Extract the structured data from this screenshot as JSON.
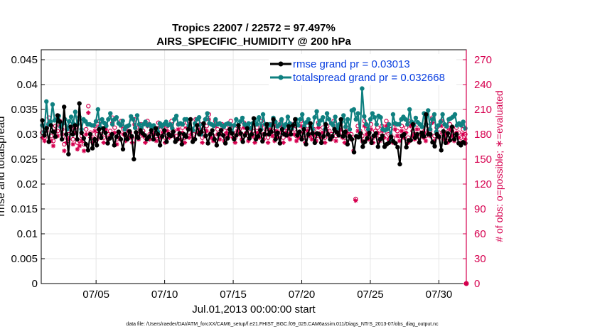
{
  "chart_data": {
    "type": "line",
    "title_line1": "Tropics 22007 / 22572 = 97.497%",
    "title_line2": "AIRS_SPECIFIC_HUMIDITY @ 200 hPa",
    "xlabel": "Jul.01,2013 00:00:00 start",
    "ylabel_left": "rmse and totalspread",
    "ylabel_right": "# of obs: o=possible; ∗=evaluated",
    "footer": "data file: /Users/raeder/DAI/ATM_forcXX/CAM6_setup/f.e21.FHIST_BGC.f09_025.CAM6assim.011/Diags_NTrS_2013-07/obs_diag_output.nc",
    "x_range_days": [
      1,
      32
    ],
    "x_ticks": [
      {
        "day": 5,
        "label": "07/05"
      },
      {
        "day": 10,
        "label": "07/10"
      },
      {
        "day": 15,
        "label": "07/15"
      },
      {
        "day": 20,
        "label": "07/20"
      },
      {
        "day": 25,
        "label": "07/25"
      },
      {
        "day": 30,
        "label": "07/30"
      }
    ],
    "ylim_left": [
      0,
      0.047
    ],
    "yticks_left": [
      "0",
      "0.005",
      "0.01",
      "0.015",
      "0.02",
      "0.025",
      "0.03",
      "0.035",
      "0.04",
      "0.045"
    ],
    "ylim_right": [
      0,
      282
    ],
    "yticks_right": [
      "0",
      "30",
      "60",
      "90",
      "120",
      "150",
      "180",
      "210",
      "240",
      "270"
    ],
    "grid": true,
    "legend_position": "top-right",
    "series": [
      {
        "name": "rmse grand pr = 0.03013",
        "color": "#000000",
        "marker": "circle",
        "axis": "left",
        "values": [
          0.0328,
          0.0298,
          0.0312,
          0.0285,
          0.0318,
          0.0305,
          0.0295,
          0.0338,
          0.0325,
          0.029,
          0.0355,
          0.03,
          0.026,
          0.0315,
          0.03,
          0.0318,
          0.029,
          0.0362,
          0.0303,
          0.0292,
          0.028,
          0.0268,
          0.03,
          0.0272,
          0.029,
          0.0278,
          0.031,
          0.0293,
          0.0312,
          0.0303,
          0.0282,
          0.0292,
          0.03,
          0.0278,
          0.0295,
          0.0305,
          0.029,
          0.027,
          0.03,
          0.029,
          0.0306,
          0.0296,
          0.025,
          0.0304,
          0.0293,
          0.0308,
          0.0302,
          0.0298,
          0.029,
          0.0295,
          0.0308,
          0.029,
          0.0312,
          0.03,
          0.0278,
          0.0296,
          0.0308,
          0.0285,
          0.03,
          0.0297,
          0.0305,
          0.0285,
          0.029,
          0.0302,
          0.028,
          0.03,
          0.0295,
          0.031,
          0.033,
          0.0285,
          0.029,
          0.0318,
          0.03,
          0.0305,
          0.0322,
          0.0297,
          0.0282,
          0.03,
          0.0308,
          0.029,
          0.0278,
          0.03,
          0.0308,
          0.0298,
          0.0282,
          0.0292,
          0.031,
          0.0302,
          0.029,
          0.0298,
          0.0318,
          0.0302,
          0.0285,
          0.0298,
          0.0312,
          0.0292,
          0.03,
          0.0332,
          0.029,
          0.0296,
          0.0308,
          0.0286,
          0.03,
          0.032,
          0.03,
          0.0305,
          0.033,
          0.029,
          0.0303,
          0.0282,
          0.031,
          0.03,
          0.0298,
          0.0316,
          0.03,
          0.0318,
          0.033,
          0.0298,
          0.0305,
          0.029,
          0.031,
          0.028,
          0.03,
          0.0322,
          0.0302,
          0.0283,
          0.0302,
          0.03,
          0.0283,
          0.0296,
          0.032,
          0.03,
          0.029,
          0.0296,
          0.031,
          0.0304,
          0.0298,
          0.033,
          0.0296,
          0.0305,
          0.028,
          0.0296,
          0.029,
          0.0264,
          0.0296,
          0.0294,
          0.0302,
          0.0275,
          0.0285,
          0.0292,
          0.0303,
          0.0283,
          0.0297,
          0.0302,
          0.0275,
          0.029,
          0.0297,
          0.0275,
          0.028,
          0.0283,
          0.0295,
          0.0286,
          0.0282,
          0.0274,
          0.024,
          0.0297,
          0.03,
          0.0274,
          0.0288,
          0.0288,
          0.032,
          0.0293,
          0.03,
          0.0284,
          0.0303,
          0.0296,
          0.034,
          0.03,
          0.03,
          0.0284,
          0.0276,
          0.03,
          0.0295,
          0.0268,
          0.0306,
          0.0283,
          0.0302,
          0.0288,
          0.0315,
          0.029,
          0.03,
          0.0282,
          0.0278,
          0.0284,
          0.0282
        ]
      },
      {
        "name": "totalspread grand pr = 0.032668",
        "color": "#0f8080",
        "marker": "circle",
        "axis": "left",
        "values": [
          0.0318,
          0.0305,
          0.0366,
          0.032,
          0.0325,
          0.036,
          0.0328,
          0.033,
          0.0337,
          0.0315,
          0.0322,
          0.033,
          0.031,
          0.0326,
          0.0335,
          0.0322,
          0.0345,
          0.032,
          0.0335,
          0.031,
          0.033,
          0.0326,
          0.032,
          0.032,
          0.0318,
          0.0318,
          0.0326,
          0.035,
          0.0314,
          0.033,
          0.0323,
          0.0317,
          0.033,
          0.0342,
          0.032,
          0.033,
          0.0334,
          0.0322,
          0.0318,
          0.0327,
          0.031,
          0.0316,
          0.0318,
          0.0336,
          0.033,
          0.0313,
          0.0338,
          0.032,
          0.0313,
          0.032,
          0.0325,
          0.0318,
          0.032,
          0.0314,
          0.0318,
          0.0312,
          0.0305,
          0.0322,
          0.0316,
          0.032,
          0.0325,
          0.0318,
          0.032,
          0.0312,
          0.033,
          0.0337,
          0.032,
          0.0322,
          0.032,
          0.033,
          0.033,
          0.0317,
          0.0312,
          0.0308,
          0.0322,
          0.033,
          0.0334,
          0.03,
          0.032,
          0.033,
          0.0342,
          0.0322,
          0.032,
          0.0317,
          0.033,
          0.032,
          0.0322,
          0.0318,
          0.0315,
          0.032,
          0.0322,
          0.032,
          0.0304,
          0.0318,
          0.033,
          0.0318,
          0.0326,
          0.0333,
          0.032,
          0.0316,
          0.0322,
          0.0312,
          0.0322,
          0.033,
          0.032,
          0.0334,
          0.031,
          0.034,
          0.032,
          0.0316,
          0.032,
          0.0318,
          0.0333,
          0.0325,
          0.0316,
          0.032,
          0.033,
          0.0314,
          0.032,
          0.0335,
          0.0322,
          0.0312,
          0.032,
          0.033,
          0.0318,
          0.033,
          0.034,
          0.0316,
          0.0324,
          0.033,
          0.0316,
          0.031,
          0.0334,
          0.0346,
          0.032,
          0.0328,
          0.0334,
          0.031,
          0.0342,
          0.033,
          0.0322,
          0.0318,
          0.0335,
          0.0312,
          0.032,
          0.0325,
          0.0338,
          0.0315,
          0.033,
          0.031,
          0.0348,
          0.035,
          0.033,
          0.0342,
          0.03,
          0.0392,
          0.0336,
          0.032,
          0.031,
          0.033,
          0.0342,
          0.0334,
          0.032,
          0.0337,
          0.0334,
          0.031,
          0.0308,
          0.031,
          0.032,
          0.029,
          0.034,
          0.0322,
          0.032,
          0.032,
          0.033,
          0.0335,
          0.033,
          0.032,
          0.035,
          0.0325,
          0.0318,
          0.0333,
          0.0324,
          0.032,
          0.0315,
          0.0342,
          0.032,
          0.0348,
          0.031,
          0.033,
          0.034,
          0.0305,
          0.0318,
          0.0325,
          0.034,
          0.032,
          0.0316,
          0.033,
          0.0332,
          0.0335,
          0.034,
          0.0318,
          0.0322,
          0.0318,
          0.0325,
          0.0312
        ]
      }
    ],
    "obs_possible": {
      "name": "# of obs possible",
      "marker": "o",
      "color": "#d6004f",
      "axis": "right",
      "values": [
        182,
        176,
        188,
        200,
        178,
        172,
        190,
        184,
        196,
        186,
        168,
        176,
        180,
        192,
        174,
        188,
        170,
        172,
        178,
        168,
        186,
        214,
        182,
        176,
        190,
        180,
        196,
        184,
        176,
        192,
        180,
        184,
        200,
        188,
        174,
        182,
        196,
        186,
        178,
        190,
        182,
        176,
        198,
        188,
        180,
        192,
        184,
        176,
        196,
        180,
        190,
        186,
        178,
        194,
        182,
        188,
        176,
        190,
        182,
        196,
        184,
        178,
        192,
        180,
        188,
        176,
        194,
        182,
        186,
        180,
        198,
        188,
        192,
        176,
        184,
        190,
        204,
        182,
        178,
        196,
        186,
        180,
        192,
        178,
        188,
        184,
        196,
        182,
        176,
        190,
        186,
        180,
        194,
        188,
        178,
        192,
        184,
        176,
        188,
        182,
        196,
        180,
        186,
        176,
        192,
        184,
        178,
        190,
        182,
        196,
        176,
        188,
        184,
        180,
        192,
        186,
        178,
        182,
        196,
        188,
        176,
        190,
        184,
        180,
        186,
        178,
        194,
        182,
        188,
        176,
        190,
        184,
        180,
        196,
        178,
        186,
        192,
        182,
        176,
        188,
        184,
        180,
        176,
        102,
        190,
        184,
        178,
        196,
        186,
        180,
        192,
        176,
        184,
        188,
        178,
        190,
        182,
        196,
        180,
        186,
        176,
        192,
        184,
        178,
        190,
        182,
        188,
        176,
        196,
        184,
        180,
        192,
        176,
        186,
        182,
        178,
        190,
        184,
        200,
        178,
        188,
        182,
        196,
        180,
        186,
        176,
        192,
        184,
        178,
        188,
        182,
        176,
        186,
        180
      ]
    },
    "obs_evaluated": {
      "name": "# of obs evaluated",
      "marker": "*",
      "color": "#d6004f",
      "axis": "right",
      "values": [
        176,
        172,
        184,
        194,
        172,
        166,
        184,
        178,
        190,
        180,
        160,
        170,
        174,
        186,
        168,
        182,
        162,
        166,
        172,
        160,
        180,
        206,
        176,
        170,
        184,
        174,
        190,
        178,
        170,
        186,
        174,
        178,
        194,
        182,
        168,
        176,
        190,
        180,
        172,
        184,
        176,
        170,
        192,
        182,
        174,
        186,
        178,
        170,
        190,
        174,
        184,
        180,
        172,
        188,
        176,
        182,
        170,
        184,
        176,
        190,
        178,
        172,
        186,
        174,
        182,
        170,
        188,
        176,
        180,
        174,
        192,
        182,
        186,
        170,
        178,
        184,
        198,
        176,
        172,
        190,
        180,
        174,
        186,
        172,
        182,
        178,
        190,
        176,
        170,
        184,
        180,
        174,
        188,
        182,
        172,
        186,
        178,
        170,
        182,
        176,
        190,
        174,
        180,
        170,
        186,
        178,
        172,
        184,
        176,
        190,
        170,
        182,
        178,
        174,
        186,
        180,
        172,
        176,
        190,
        182,
        170,
        184,
        178,
        174,
        180,
        172,
        188,
        176,
        182,
        170,
        184,
        178,
        174,
        190,
        172,
        180,
        186,
        176,
        170,
        182,
        178,
        174,
        160,
        100,
        184,
        178,
        172,
        190,
        180,
        174,
        186,
        170,
        178,
        182,
        172,
        184,
        176,
        190,
        174,
        180,
        170,
        186,
        178,
        172,
        184,
        176,
        182,
        170,
        190,
        178,
        174,
        186,
        170,
        180,
        176,
        172,
        184,
        178,
        194,
        172,
        182,
        176,
        190,
        174,
        180,
        170,
        186,
        178,
        172,
        182,
        176,
        170,
        180,
        174
      ]
    }
  }
}
